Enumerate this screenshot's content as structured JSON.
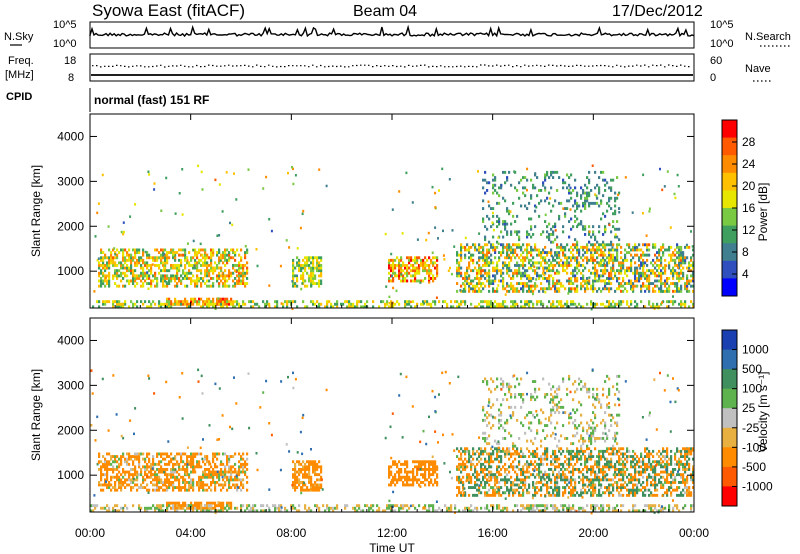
{
  "header": {
    "station": "Syowa East (fitACF)",
    "beam": "Beam 04",
    "date": "17/Dec/2012"
  },
  "top_panels": {
    "nsky_label": "N.Sky",
    "nsearch_label": "N.Search",
    "freq_label_line1": "Freq.",
    "freq_label_line2": "[MHz]",
    "nave_label": "Nave",
    "cpid_label": "CPID",
    "cpid_text": "normal (fast) 151 RF",
    "noise_axis_left": [
      "10^5",
      "10^0"
    ],
    "noise_axis_right": [
      "10^5",
      "10^0"
    ],
    "freq_axis_left": [
      "18",
      "8"
    ],
    "nave_axis_right": [
      "60",
      "0"
    ]
  },
  "power_colorbar": {
    "label": "Power [dB]",
    "ticks": [
      "28",
      "24",
      "20",
      "16",
      "12",
      "8",
      "4"
    ],
    "colors": [
      "#ff0000",
      "#ff5a00",
      "#ff8c00",
      "#ffc000",
      "#e6e600",
      "#7ac943",
      "#3f9f5f",
      "#3f7f8f",
      "#2f4fbf",
      "#0000ff"
    ]
  },
  "velocity_colorbar": {
    "label": "Velocity [m s⁻¹]",
    "ticks": [
      "1000",
      "500",
      "100",
      "25",
      "-25",
      "-100",
      "-500",
      "-1000"
    ],
    "colors": [
      "#1a3fb0",
      "#2f6fb0",
      "#3f8f5f",
      "#5fb34f",
      "#c0c0c0",
      "#e8b040",
      "#ff8c00",
      "#ff5a00",
      "#ff0000"
    ]
  },
  "xaxis": {
    "label": "Time UT",
    "ticks": [
      "00:00",
      "04:00",
      "08:00",
      "12:00",
      "16:00",
      "20:00",
      "00:00"
    ]
  },
  "chart_data": [
    {
      "type": "heatmap",
      "name": "power",
      "ylabel": "Slant Range [km]",
      "yticks": [
        "4000",
        "3000",
        "2000",
        "1000"
      ],
      "ylim": [
        180,
        4500
      ],
      "xlim_hours": [
        0,
        24
      ],
      "regions": [
        {
          "t0": 0.3,
          "t1": 6.2,
          "r0": 600,
          "r1": 1500,
          "pmin": 8,
          "pmax": 24,
          "density": 0.55
        },
        {
          "t0": 3.0,
          "t1": 5.6,
          "r0": 200,
          "r1": 400,
          "pmin": 16,
          "pmax": 28,
          "density": 0.8
        },
        {
          "t0": 8.0,
          "t1": 9.2,
          "r0": 600,
          "r1": 1300,
          "pmin": 8,
          "pmax": 20,
          "density": 0.6
        },
        {
          "t0": 11.8,
          "t1": 13.8,
          "r0": 700,
          "r1": 1300,
          "pmin": 12,
          "pmax": 28,
          "density": 0.6
        },
        {
          "t0": 14.5,
          "t1": 24.0,
          "r0": 500,
          "r1": 1600,
          "pmin": 4,
          "pmax": 24,
          "density": 0.5
        },
        {
          "t0": 15.5,
          "t1": 21.0,
          "r0": 1600,
          "r1": 3200,
          "pmin": 4,
          "pmax": 12,
          "density": 0.18
        },
        {
          "t0": 0.0,
          "t1": 24.0,
          "r0": 180,
          "r1": 320,
          "pmin": 8,
          "pmax": 20,
          "density": 0.45
        }
      ]
    },
    {
      "type": "heatmap",
      "name": "velocity",
      "ylabel": "Slant Range [km]",
      "yticks": [
        "4000",
        "3000",
        "2000",
        "1000"
      ],
      "ylim": [
        180,
        4500
      ],
      "xlim_hours": [
        0,
        24
      ],
      "regions": [
        {
          "t0": 0.3,
          "t1": 6.2,
          "r0": 600,
          "r1": 1500,
          "vmin": -500,
          "vmax": 100,
          "density": 0.55
        },
        {
          "t0": 3.0,
          "t1": 5.6,
          "r0": 200,
          "r1": 400,
          "vmin": -500,
          "vmax": -100,
          "density": 0.8
        },
        {
          "t0": 8.0,
          "t1": 9.2,
          "r0": 600,
          "r1": 1300,
          "vmin": -500,
          "vmax": -25,
          "density": 0.6
        },
        {
          "t0": 11.8,
          "t1": 13.8,
          "r0": 700,
          "r1": 1300,
          "vmin": -500,
          "vmax": -100,
          "density": 0.6
        },
        {
          "t0": 14.5,
          "t1": 24.0,
          "r0": 500,
          "r1": 1600,
          "vmin": -500,
          "vmax": 500,
          "density": 0.5
        },
        {
          "t0": 15.5,
          "t1": 21.0,
          "r0": 1600,
          "r1": 3200,
          "vmin": -100,
          "vmax": 100,
          "density": 0.18
        },
        {
          "t0": 0.0,
          "t1": 24.0,
          "r0": 180,
          "r1": 320,
          "vmin": -100,
          "vmax": 100,
          "density": 0.45
        }
      ]
    }
  ]
}
